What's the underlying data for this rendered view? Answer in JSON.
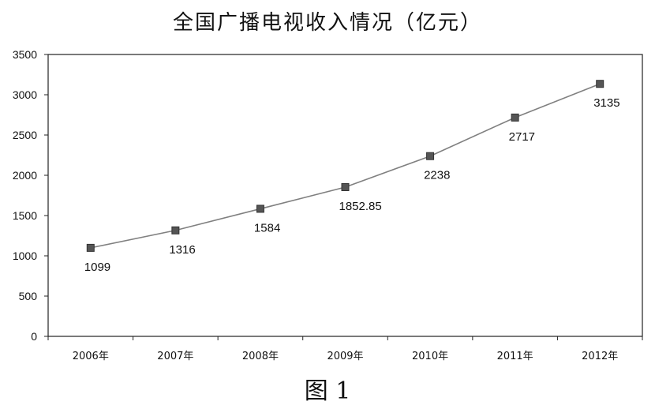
{
  "chart_data": {
    "type": "line",
    "title": "全国广播电视收入情况（亿元）",
    "caption": "图 1",
    "categories": [
      "2006年",
      "2007年",
      "2008年",
      "2009年",
      "2010年",
      "2011年",
      "2012年"
    ],
    "values": [
      1099,
      1316,
      1584,
      1852.85,
      2238,
      2717,
      3135
    ],
    "data_labels": [
      "1099",
      "1316",
      "1584",
      "1852.85",
      "2238",
      "2717",
      "3135"
    ],
    "y_ticks": [
      "0",
      "500",
      "1000",
      "1500",
      "2000",
      "2500",
      "3000",
      "3500"
    ],
    "ylim": [
      0,
      3500
    ],
    "grid": false,
    "line_color": "#808080",
    "marker_color": "#555555"
  }
}
